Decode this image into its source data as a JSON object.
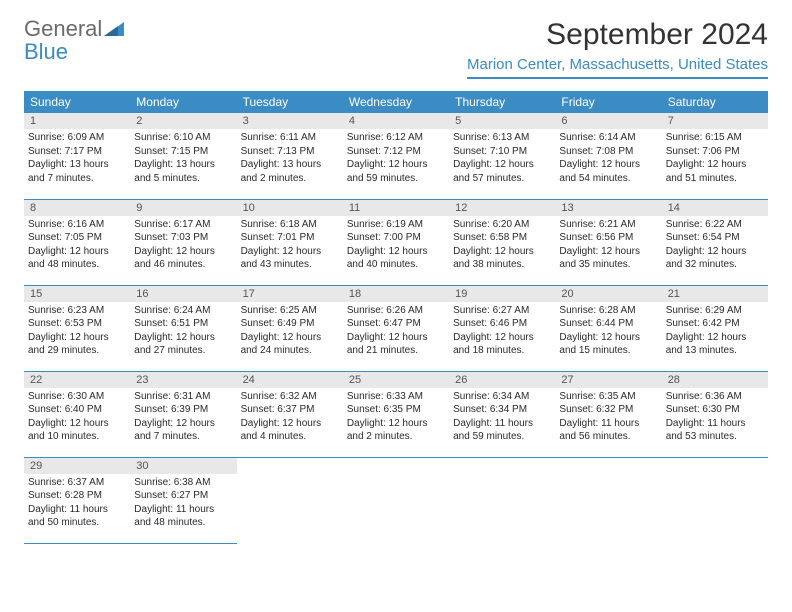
{
  "logo": {
    "general": "General",
    "blue": "Blue"
  },
  "title": "September 2024",
  "location": "Marion Center, Massachusetts, United States",
  "colors": {
    "accent": "#3b8bc4",
    "header_bg": "#3b8bc4",
    "header_text": "#ffffff",
    "daynum_bg": "#e8e8e8",
    "text": "#333333",
    "logo_gray": "#6b6b6b"
  },
  "weekdays": [
    "Sunday",
    "Monday",
    "Tuesday",
    "Wednesday",
    "Thursday",
    "Friday",
    "Saturday"
  ],
  "labels": {
    "sunrise": "Sunrise:",
    "sunset": "Sunset:",
    "daylight": "Daylight:"
  },
  "days": [
    {
      "n": 1,
      "sunrise": "6:09 AM",
      "sunset": "7:17 PM",
      "daylight": "13 hours and 7 minutes."
    },
    {
      "n": 2,
      "sunrise": "6:10 AM",
      "sunset": "7:15 PM",
      "daylight": "13 hours and 5 minutes."
    },
    {
      "n": 3,
      "sunrise": "6:11 AM",
      "sunset": "7:13 PM",
      "daylight": "13 hours and 2 minutes."
    },
    {
      "n": 4,
      "sunrise": "6:12 AM",
      "sunset": "7:12 PM",
      "daylight": "12 hours and 59 minutes."
    },
    {
      "n": 5,
      "sunrise": "6:13 AM",
      "sunset": "7:10 PM",
      "daylight": "12 hours and 57 minutes."
    },
    {
      "n": 6,
      "sunrise": "6:14 AM",
      "sunset": "7:08 PM",
      "daylight": "12 hours and 54 minutes."
    },
    {
      "n": 7,
      "sunrise": "6:15 AM",
      "sunset": "7:06 PM",
      "daylight": "12 hours and 51 minutes."
    },
    {
      "n": 8,
      "sunrise": "6:16 AM",
      "sunset": "7:05 PM",
      "daylight": "12 hours and 48 minutes."
    },
    {
      "n": 9,
      "sunrise": "6:17 AM",
      "sunset": "7:03 PM",
      "daylight": "12 hours and 46 minutes."
    },
    {
      "n": 10,
      "sunrise": "6:18 AM",
      "sunset": "7:01 PM",
      "daylight": "12 hours and 43 minutes."
    },
    {
      "n": 11,
      "sunrise": "6:19 AM",
      "sunset": "7:00 PM",
      "daylight": "12 hours and 40 minutes."
    },
    {
      "n": 12,
      "sunrise": "6:20 AM",
      "sunset": "6:58 PM",
      "daylight": "12 hours and 38 minutes."
    },
    {
      "n": 13,
      "sunrise": "6:21 AM",
      "sunset": "6:56 PM",
      "daylight": "12 hours and 35 minutes."
    },
    {
      "n": 14,
      "sunrise": "6:22 AM",
      "sunset": "6:54 PM",
      "daylight": "12 hours and 32 minutes."
    },
    {
      "n": 15,
      "sunrise": "6:23 AM",
      "sunset": "6:53 PM",
      "daylight": "12 hours and 29 minutes."
    },
    {
      "n": 16,
      "sunrise": "6:24 AM",
      "sunset": "6:51 PM",
      "daylight": "12 hours and 27 minutes."
    },
    {
      "n": 17,
      "sunrise": "6:25 AM",
      "sunset": "6:49 PM",
      "daylight": "12 hours and 24 minutes."
    },
    {
      "n": 18,
      "sunrise": "6:26 AM",
      "sunset": "6:47 PM",
      "daylight": "12 hours and 21 minutes."
    },
    {
      "n": 19,
      "sunrise": "6:27 AM",
      "sunset": "6:46 PM",
      "daylight": "12 hours and 18 minutes."
    },
    {
      "n": 20,
      "sunrise": "6:28 AM",
      "sunset": "6:44 PM",
      "daylight": "12 hours and 15 minutes."
    },
    {
      "n": 21,
      "sunrise": "6:29 AM",
      "sunset": "6:42 PM",
      "daylight": "12 hours and 13 minutes."
    },
    {
      "n": 22,
      "sunrise": "6:30 AM",
      "sunset": "6:40 PM",
      "daylight": "12 hours and 10 minutes."
    },
    {
      "n": 23,
      "sunrise": "6:31 AM",
      "sunset": "6:39 PM",
      "daylight": "12 hours and 7 minutes."
    },
    {
      "n": 24,
      "sunrise": "6:32 AM",
      "sunset": "6:37 PM",
      "daylight": "12 hours and 4 minutes."
    },
    {
      "n": 25,
      "sunrise": "6:33 AM",
      "sunset": "6:35 PM",
      "daylight": "12 hours and 2 minutes."
    },
    {
      "n": 26,
      "sunrise": "6:34 AM",
      "sunset": "6:34 PM",
      "daylight": "11 hours and 59 minutes."
    },
    {
      "n": 27,
      "sunrise": "6:35 AM",
      "sunset": "6:32 PM",
      "daylight": "11 hours and 56 minutes."
    },
    {
      "n": 28,
      "sunrise": "6:36 AM",
      "sunset": "6:30 PM",
      "daylight": "11 hours and 53 minutes."
    },
    {
      "n": 29,
      "sunrise": "6:37 AM",
      "sunset": "6:28 PM",
      "daylight": "11 hours and 50 minutes."
    },
    {
      "n": 30,
      "sunrise": "6:38 AM",
      "sunset": "6:27 PM",
      "daylight": "11 hours and 48 minutes."
    }
  ],
  "grid": {
    "start_weekday": 0,
    "rows": 5,
    "cols": 7
  }
}
